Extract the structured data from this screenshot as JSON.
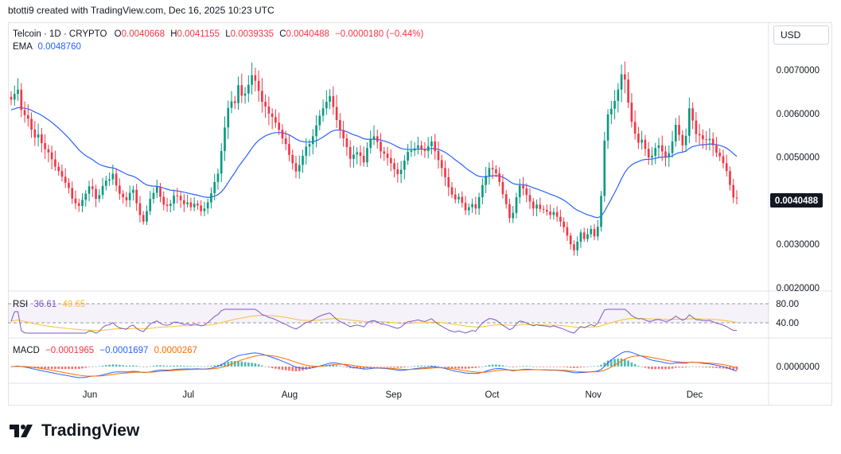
{
  "header": {
    "byline": "btotti9 created with TradingView.com, Dec 16, 2025 10:23 UTC"
  },
  "symbol": {
    "name": "Telcoin · 1D · CRYPTO",
    "o_label": "O",
    "o": "0.0040668",
    "h_label": "H",
    "h": "0.0041155",
    "l_label": "L",
    "l": "0.0039335",
    "c_label": "C",
    "c": "0.0040488",
    "change": "−0.0000180 (−0.44%)"
  },
  "ema_legend": {
    "label": "EMA",
    "value": "0.0048760"
  },
  "rsi_legend": {
    "label": "RSI",
    "value": "36.61",
    "ma": "40.65"
  },
  "macd_legend": {
    "label": "MACD",
    "macd": "−0.0001965",
    "signal": "−0.0001697",
    "hist": "0.0000267"
  },
  "currency": "USD",
  "last_price": "0.0040488",
  "brand": "TradingView",
  "colors": {
    "up": "#089981",
    "down": "#f23645",
    "ema": "#2962ff",
    "rsi": "#7e57c2",
    "rsi_ma": "#fbc02d",
    "macd": "#2962ff",
    "signal": "#ff6d00",
    "text": "#131722",
    "grid": "#f0f3fa"
  },
  "chart_data": {
    "type": "candlestick",
    "y_ticks": [
      "0.0070000",
      "0.0060000",
      "0.0050000",
      "0.0030000",
      "0.0020000"
    ],
    "y_tick_values": [
      0.007,
      0.006,
      0.005,
      0.003,
      0.002
    ],
    "ylim": [
      0.002,
      0.0075
    ],
    "x_labels": [
      "Jun",
      "Jul",
      "Aug",
      "Sep",
      "Oct",
      "Nov",
      "Dec"
    ],
    "rsi_ticks": [
      "80.00",
      "40.00"
    ],
    "macd_ticks": [
      "0.0000000"
    ],
    "close": [
      0.00632,
      0.00645,
      0.00655,
      0.00608,
      0.00596,
      0.00588,
      0.00563,
      0.00545,
      0.00552,
      0.00532,
      0.00518,
      0.00511,
      0.00495,
      0.00478,
      0.00468,
      0.00455,
      0.00441,
      0.00429,
      0.00405,
      0.00394,
      0.00388,
      0.00402,
      0.00416,
      0.00433,
      0.00427,
      0.00404,
      0.00413,
      0.00434,
      0.00446,
      0.00449,
      0.00462,
      0.00435,
      0.00416,
      0.00408,
      0.00401,
      0.00418,
      0.00425,
      0.00394,
      0.00367,
      0.00352,
      0.00376,
      0.00404,
      0.00418,
      0.00432,
      0.00409,
      0.00391,
      0.00388,
      0.00393,
      0.00412,
      0.00411,
      0.00401,
      0.00392,
      0.00396,
      0.00385,
      0.00393,
      0.00389,
      0.00376,
      0.00382,
      0.00396,
      0.00417,
      0.00443,
      0.00462,
      0.00514,
      0.00568,
      0.00613,
      0.00628,
      0.00624,
      0.00665,
      0.00641,
      0.00646,
      0.00666,
      0.00688,
      0.00675,
      0.00652,
      0.00627,
      0.00616,
      0.006,
      0.00592,
      0.00579,
      0.00563,
      0.00543,
      0.0053,
      0.00505,
      0.00486,
      0.00467,
      0.00482,
      0.00503,
      0.00524,
      0.0053,
      0.00548,
      0.00573,
      0.00595,
      0.00612,
      0.00627,
      0.0064,
      0.00615,
      0.00585,
      0.00562,
      0.00543,
      0.00523,
      0.00496,
      0.00506,
      0.00511,
      0.00503,
      0.00488,
      0.00521,
      0.00542,
      0.00548,
      0.00535,
      0.00513,
      0.00508,
      0.00498,
      0.00486,
      0.00472,
      0.00461,
      0.00471,
      0.00492,
      0.00512,
      0.00515,
      0.0052,
      0.00527,
      0.00519,
      0.00514,
      0.00525,
      0.00536,
      0.00514,
      0.00493,
      0.00475,
      0.00454,
      0.00431,
      0.00414,
      0.00403,
      0.00409,
      0.00395,
      0.00378,
      0.00385,
      0.00392,
      0.00382,
      0.00408,
      0.00436,
      0.00457,
      0.00475,
      0.00472,
      0.00463,
      0.00443,
      0.00415,
      0.00392,
      0.0036,
      0.00372,
      0.00408,
      0.00435,
      0.00428,
      0.00413,
      0.00398,
      0.00382,
      0.00391,
      0.00381,
      0.00379,
      0.00375,
      0.00367,
      0.00374,
      0.00363,
      0.00352,
      0.00339,
      0.0032,
      0.003,
      0.00286,
      0.00306,
      0.00327,
      0.00312,
      0.00323,
      0.00335,
      0.00318,
      0.0034,
      0.00411,
      0.00538,
      0.00598,
      0.00611,
      0.00629,
      0.00655,
      0.0069,
      0.00678,
      0.00625,
      0.00581,
      0.00554,
      0.00533,
      0.0054,
      0.00519,
      0.00499,
      0.00503,
      0.00521,
      0.00527,
      0.00513,
      0.00501,
      0.00509,
      0.00536,
      0.00574,
      0.00551,
      0.00527,
      0.00549,
      0.00612,
      0.00584,
      0.00553,
      0.0055,
      0.00541,
      0.00539,
      0.00542,
      0.00527,
      0.0051,
      0.00502,
      0.00486,
      0.00468,
      0.00436,
      0.00407,
      0.00405
    ]
  }
}
